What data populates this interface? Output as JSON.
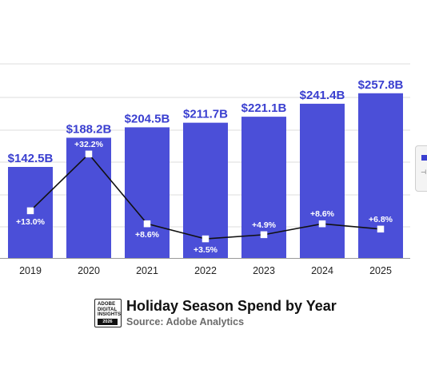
{
  "chart_data": {
    "type": "bar",
    "categories": [
      "2019",
      "2020",
      "2021",
      "2022",
      "2023",
      "2024",
      "2025"
    ],
    "values": [
      142.5,
      188.2,
      204.5,
      211.7,
      221.1,
      241.4,
      257.8
    ],
    "value_labels": [
      "$142.5B",
      "$188.2B",
      "$204.5B",
      "$211.7B",
      "$221.1B",
      "$241.4B",
      "$257.8B"
    ],
    "growth": [
      13.0,
      32.2,
      8.6,
      3.5,
      4.9,
      8.6,
      6.8
    ],
    "growth_labels": [
      "+13.0%",
      "+32.2%",
      "+8.6%",
      "+3.5%",
      "+4.9%",
      "+8.6%",
      "+6.8%"
    ],
    "bar_color": "#4b4fd8",
    "label_color": "#3a3fd0",
    "line_color": "#111111",
    "grid": true,
    "legend": "right"
  },
  "footer": {
    "logo_text": "ADOBE\nDIGITAL\nINSIGHTS",
    "logo_year": "2026",
    "title": "Holiday Season Spend by Year",
    "source": "Source: Adobe Analytics"
  }
}
